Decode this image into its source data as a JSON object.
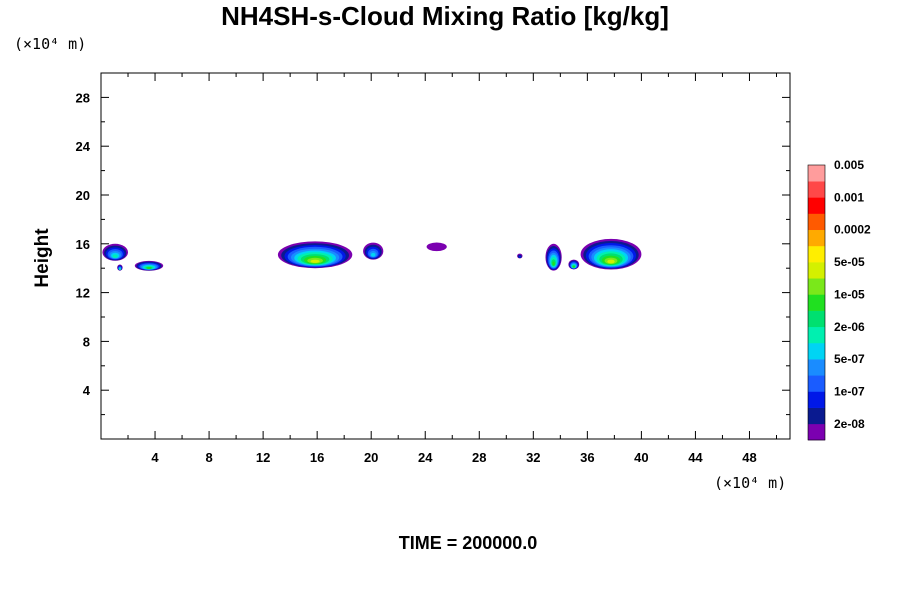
{
  "chart_data": {
    "type": "heatmap",
    "title": "NH4SH-s-Cloud Mixing Ratio [kg/kg]",
    "ylabel": "Height",
    "xlabel": "",
    "x_unit": "(×10⁴ m)",
    "y_unit": "(×10⁴ m)",
    "xlim": [
      0,
      51
    ],
    "ylim": [
      0,
      30
    ],
    "x_ticks": [
      4,
      8,
      12,
      16,
      20,
      24,
      28,
      32,
      36,
      40,
      44,
      48
    ],
    "y_ticks": [
      4,
      8,
      12,
      16,
      20,
      24,
      28
    ],
    "time_label": "TIME = 200000.0",
    "colorbar": {
      "colors": [
        "#7b00b0",
        "#0a1a90",
        "#0018e8",
        "#1a5cff",
        "#1a8cff",
        "#00d4f4",
        "#00f0b0",
        "#00e070",
        "#20e020",
        "#7ae81a",
        "#d4f000",
        "#ffee00",
        "#ffaa00",
        "#ff5a00",
        "#ff0000",
        "#ff4848",
        "#ff9c9c"
      ],
      "labels": [
        "2e-08",
        "1e-07",
        "5e-07",
        "2e-06",
        "1e-05",
        "5e-05",
        "0.0002",
        "0.001",
        "0.005"
      ]
    },
    "regions": [
      {
        "x": [
          0.1,
          2.0
        ],
        "y": [
          14.6,
          16.0
        ],
        "peak": 7
      },
      {
        "x": [
          1.2,
          1.6
        ],
        "y": [
          13.8,
          14.3
        ],
        "peak": 7
      },
      {
        "x": [
          2.5,
          4.6
        ],
        "y": [
          13.8,
          14.6
        ],
        "peak": 9
      },
      {
        "x": [
          13.1,
          18.6
        ],
        "y": [
          14.0,
          16.2
        ],
        "peak": 11
      },
      {
        "x": [
          19.4,
          20.9
        ],
        "y": [
          14.7,
          16.1
        ],
        "peak": 6
      },
      {
        "x": [
          24.1,
          25.6
        ],
        "y": [
          15.4,
          16.1
        ],
        "peak": 1
      },
      {
        "x": [
          30.8,
          31.2
        ],
        "y": [
          14.8,
          15.2
        ],
        "peak": 3
      },
      {
        "x": [
          32.9,
          34.1
        ],
        "y": [
          13.8,
          16.0
        ],
        "peak": 9
      },
      {
        "x": [
          34.6,
          35.4
        ],
        "y": [
          13.9,
          14.7
        ],
        "peak": 9
      },
      {
        "x": [
          35.5,
          40.0
        ],
        "y": [
          13.9,
          16.4
        ],
        "peak": 11
      }
    ]
  }
}
